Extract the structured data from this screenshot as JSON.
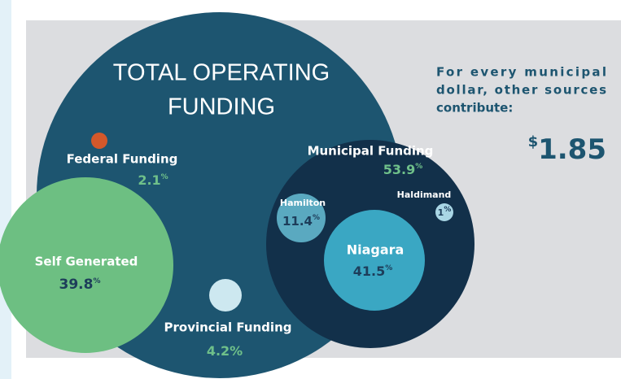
{
  "header": {
    "title_lines": [
      "TOTAL OPERATING",
      "FUNDING"
    ]
  },
  "sources": [
    {
      "label": "Federal Funding",
      "value": "2.1",
      "unit": "%"
    },
    {
      "label": "Self Generated",
      "value": "39.8",
      "unit": "%"
    },
    {
      "label": "Provincial Funding",
      "value": "4.2",
      "unit": "%"
    },
    {
      "label": "Municipal Funding",
      "value": "53.9",
      "unit": "%"
    }
  ],
  "municipal": [
    {
      "label": "Hamilton",
      "value": "11.4",
      "unit": "%"
    },
    {
      "label": "Haldimand",
      "value": "1",
      "unit": "%"
    },
    {
      "label": "Niagara",
      "value": "41.5",
      "unit": "%"
    }
  ],
  "note": {
    "lines": [
      "For every municipal",
      "dollar, other sources",
      "contribute:"
    ],
    "currency": "$",
    "amount": "1.85"
  }
}
